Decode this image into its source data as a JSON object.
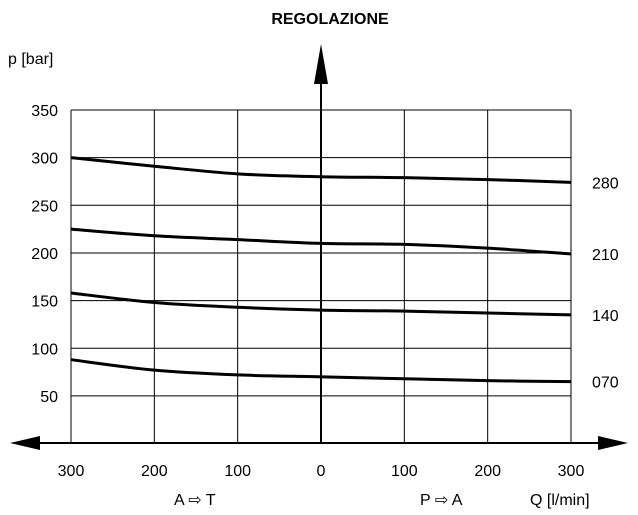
{
  "chart_data": {
    "type": "line",
    "title": "REGOLAZIONE",
    "ylabel": "p [bar]",
    "xlabel": "Q [l/min]",
    "flow_left_label": "A ⇨ T",
    "flow_right_label": "P ⇨ A",
    "x_ticks": [
      "300",
      "200",
      "100",
      "0",
      "100",
      "200",
      "300"
    ],
    "x_tick_values": [
      -300,
      -200,
      -100,
      0,
      100,
      200,
      300
    ],
    "y_ticks": [
      "350",
      "300",
      "250",
      "200",
      "150",
      "100",
      "50"
    ],
    "y_tick_values": [
      350,
      300,
      250,
      200,
      150,
      100,
      50
    ],
    "xlim": [
      -300,
      300
    ],
    "ylim": [
      0,
      350
    ],
    "grid": true,
    "series": [
      {
        "name": "280",
        "x": [
          -300,
          -200,
          -100,
          0,
          100,
          200,
          300
        ],
        "values": [
          300,
          291,
          283,
          280,
          279,
          277,
          274
        ]
      },
      {
        "name": "210",
        "x": [
          -300,
          -200,
          -100,
          0,
          100,
          200,
          300
        ],
        "values": [
          225,
          218,
          214,
          210,
          209,
          205,
          199
        ]
      },
      {
        "name": "140",
        "x": [
          -300,
          -200,
          -100,
          0,
          100,
          200,
          300
        ],
        "values": [
          158,
          148,
          143,
          140,
          139,
          137,
          135
        ]
      },
      {
        "name": "070",
        "x": [
          -300,
          -200,
          -100,
          0,
          100,
          200,
          300
        ],
        "values": [
          88,
          77,
          72,
          70,
          68,
          66,
          65
        ]
      }
    ]
  }
}
